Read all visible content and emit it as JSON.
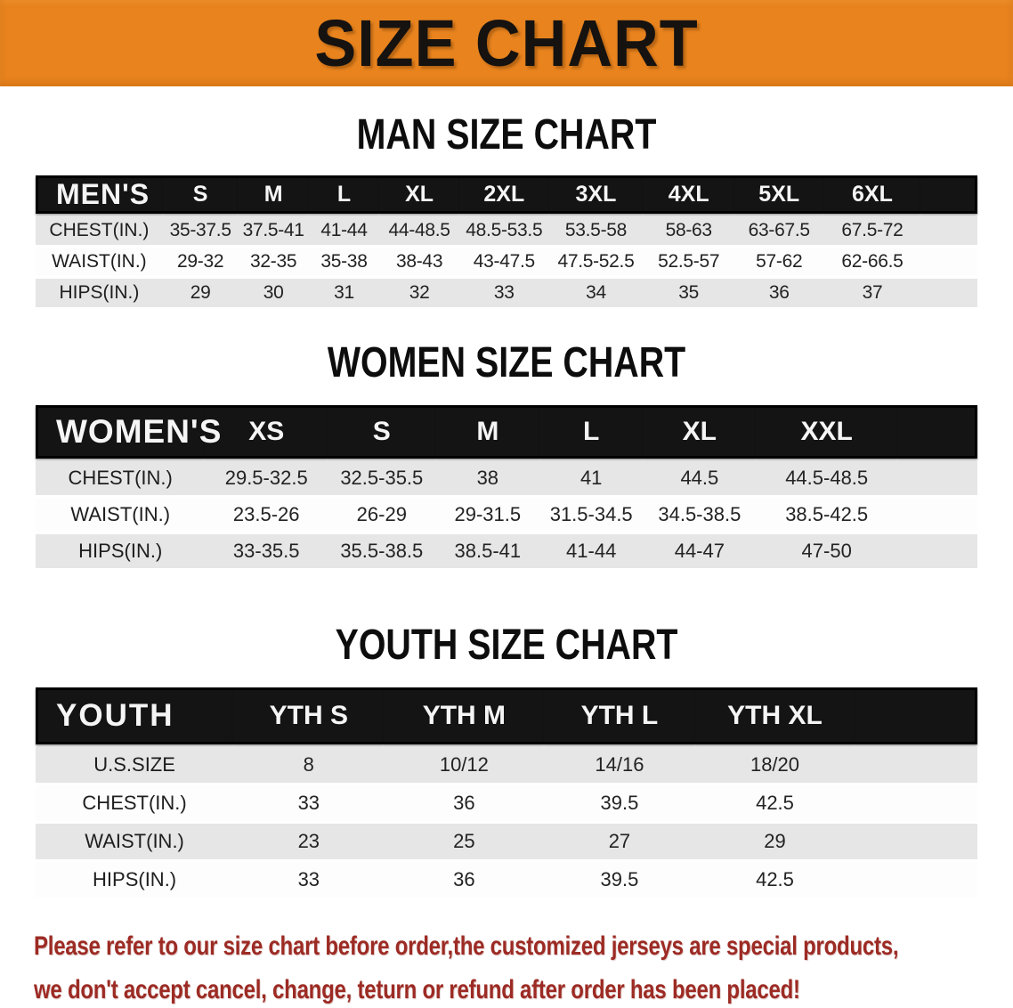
{
  "banner": {
    "title": "SIZE CHART"
  },
  "sections": {
    "men_heading": "MAN SIZE CHART",
    "women_heading": "WOMEN SIZE CHART",
    "youth_heading": "YOUTH SIZE CHART"
  },
  "tables": {
    "men": {
      "title": "MEN'S",
      "columns": [
        "S",
        "M",
        "L",
        "XL",
        "2XL",
        "3XL",
        "4XL",
        "5XL",
        "6XL"
      ],
      "rows": [
        {
          "label": "CHEST(IN.)",
          "values": [
            "35-37.5",
            "37.5-41",
            "41-44",
            "44-48.5",
            "48.5-53.5",
            "53.5-58",
            "58-63",
            "63-67.5",
            "67.5-72"
          ]
        },
        {
          "label": "WAIST(IN.)",
          "values": [
            "29-32",
            "32-35",
            "35-38",
            "38-43",
            "43-47.5",
            "47.5-52.5",
            "52.5-57",
            "57-62",
            "62-66.5"
          ]
        },
        {
          "label": "HIPS(IN.)",
          "values": [
            "29",
            "30",
            "31",
            "32",
            "33",
            "34",
            "35",
            "36",
            "37"
          ]
        }
      ]
    },
    "women": {
      "title": "WOMEN'S",
      "columns": [
        "XS",
        "S",
        "M",
        "L",
        "XL",
        "XXL"
      ],
      "rows": [
        {
          "label": "CHEST(IN.)",
          "values": [
            "29.5-32.5",
            "32.5-35.5",
            "38",
            "41",
            "44.5",
            "44.5-48.5"
          ]
        },
        {
          "label": "WAIST(IN.)",
          "values": [
            "23.5-26",
            "26-29",
            "29-31.5",
            "31.5-34.5",
            "34.5-38.5",
            "38.5-42.5"
          ]
        },
        {
          "label": "HIPS(IN.)",
          "values": [
            "33-35.5",
            "35.5-38.5",
            "38.5-41",
            "41-44",
            "44-47",
            "47-50"
          ]
        }
      ]
    },
    "youth": {
      "title": "YOUTH",
      "columns": [
        "YTH S",
        "YTH M",
        "YTH L",
        "YTH XL"
      ],
      "rows": [
        {
          "label": "U.S.SIZE",
          "values": [
            "8",
            "10/12",
            "14/16",
            "18/20"
          ]
        },
        {
          "label": "CHEST(IN.)",
          "values": [
            "33",
            "36",
            "39.5",
            "42.5"
          ]
        },
        {
          "label": "WAIST(IN.)",
          "values": [
            "23",
            "25",
            "27",
            "29"
          ]
        },
        {
          "label": "HIPS(IN.)",
          "values": [
            "33",
            "36",
            "39.5",
            "42.5"
          ]
        }
      ]
    }
  },
  "footer": {
    "line1": "Please refer to our size chart before order,the customized jerseys are special products,",
    "line2": "we don't accept cancel, change, teturn or refund after order has been placed!"
  },
  "colors": {
    "banner_orange": "#E8831E",
    "heading_black": "#0D0D0D",
    "header_bar": "#141414",
    "header_text": "#F5F5F5",
    "row_gray": "#E6E6E6",
    "row_white": "#FDFDFD",
    "footer_red": "#9C2B24"
  }
}
